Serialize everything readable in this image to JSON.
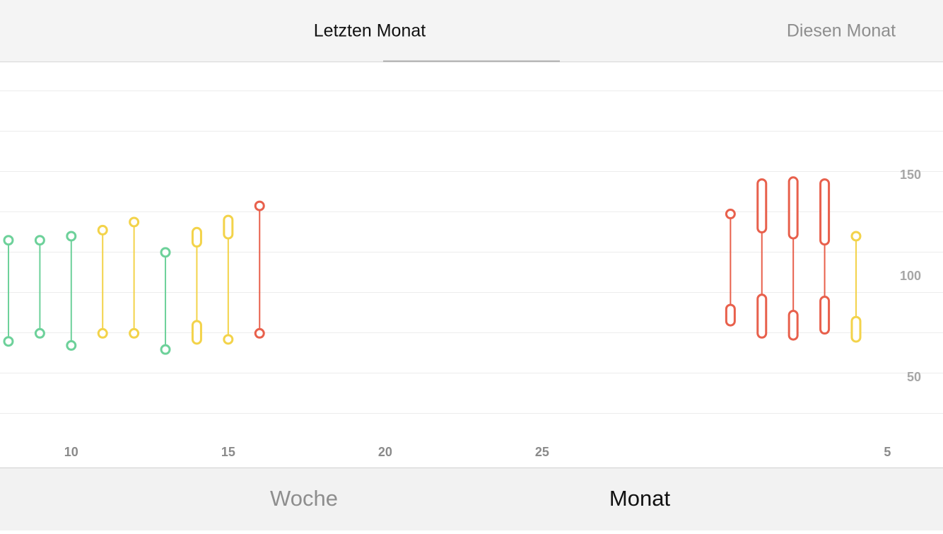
{
  "top_tabs": [
    "Letzten Monat",
    "Diesen Monat"
  ],
  "chart_data": {
    "type": "range",
    "x": [
      8,
      9,
      10,
      11,
      12,
      13,
      14,
      15,
      16,
      31,
      32,
      33,
      34,
      35
    ],
    "systolic_high": [
      118,
      118,
      120,
      123,
      127,
      112,
      122,
      128,
      135,
      131,
      146,
      147,
      146,
      120
    ],
    "systolic_low": [
      118,
      118,
      120,
      123,
      127,
      112,
      117,
      121,
      135,
      131,
      124,
      121,
      118,
      120
    ],
    "diastolic_high": [
      68,
      72,
      66,
      72,
      72,
      64,
      76,
      69,
      72,
      84,
      89,
      81,
      88,
      78
    ],
    "diastolic_low": [
      68,
      72,
      66,
      72,
      72,
      64,
      69,
      69,
      72,
      78,
      72,
      71,
      74,
      70
    ],
    "colors": [
      "#6dd19a",
      "#6dd19a",
      "#6dd19a",
      "#f3d34a",
      "#f3d34a",
      "#6dd19a",
      "#f3d34a",
      "#f3d34a",
      "#e8604c",
      "#e8604c",
      "#e8604c",
      "#e8604c",
      "#e8604c",
      "#f3d34a"
    ],
    "xlim": [
      7.73,
      37.77
    ],
    "xticks": [
      10,
      15,
      20,
      25,
      {
        "value": 36,
        "label": "5"
      }
    ],
    "ylim": [
      20,
      206
    ],
    "yticks": [
      50,
      100,
      150
    ]
  },
  "bottom_tabs": [
    "Woche",
    "Monat"
  ]
}
